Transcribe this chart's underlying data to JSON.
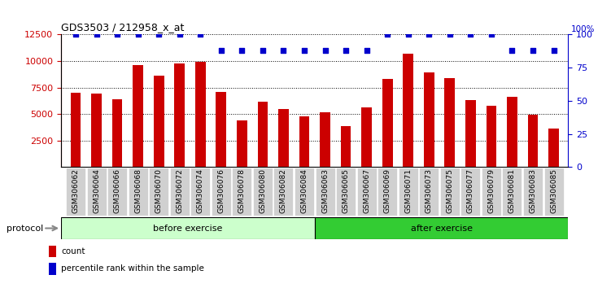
{
  "title": "GDS3503 / 212958_x_at",
  "categories": [
    "GSM306062",
    "GSM306064",
    "GSM306066",
    "GSM306068",
    "GSM306070",
    "GSM306072",
    "GSM306074",
    "GSM306076",
    "GSM306078",
    "GSM306080",
    "GSM306082",
    "GSM306084",
    "GSM306063",
    "GSM306065",
    "GSM306067",
    "GSM306069",
    "GSM306071",
    "GSM306073",
    "GSM306075",
    "GSM306077",
    "GSM306079",
    "GSM306081",
    "GSM306083",
    "GSM306085"
  ],
  "bar_values": [
    7000,
    6950,
    6400,
    9600,
    8650,
    9750,
    9950,
    7050,
    4400,
    6200,
    5500,
    4800,
    5200,
    3850,
    5600,
    8300,
    10700,
    8900,
    8400,
    6300,
    5800,
    6600,
    4900,
    3600
  ],
  "percentile_values": [
    100,
    100,
    100,
    100,
    100,
    100,
    100,
    88,
    88,
    88,
    88,
    88,
    88,
    88,
    88,
    100,
    100,
    100,
    100,
    100,
    100,
    88,
    88,
    88
  ],
  "bar_color": "#cc0000",
  "dot_color": "#0000cc",
  "ylim_left": [
    0,
    12500
  ],
  "ylim_right": [
    0,
    100
  ],
  "yticks_left": [
    2500,
    5000,
    7500,
    10000,
    12500
  ],
  "yticks_right": [
    0,
    25,
    50,
    75,
    100
  ],
  "before_count": 12,
  "after_count": 12,
  "before_label": "before exercise",
  "after_label": "after exercise",
  "protocol_label": "protocol",
  "legend_count_label": "count",
  "legend_percentile_label": "percentile rank within the sample",
  "before_color": "#ccffcc",
  "after_color": "#33cc33",
  "plot_bg": "#ffffff",
  "xlabel_bg": "#d0d0d0"
}
